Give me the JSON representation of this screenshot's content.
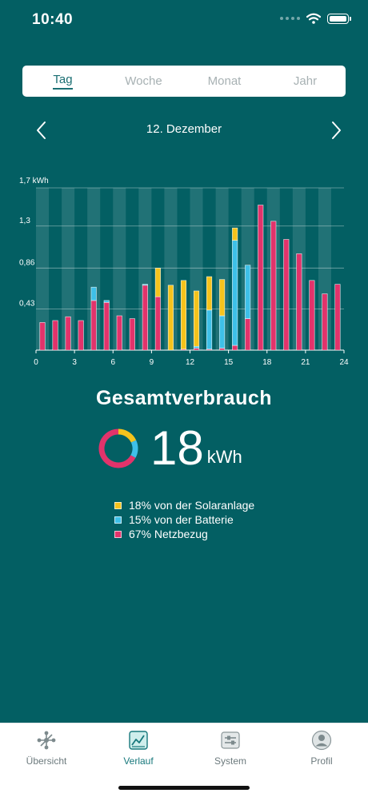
{
  "status_bar": {
    "time": "10:40"
  },
  "period_tabs": [
    {
      "label": "Tag",
      "active": true
    },
    {
      "label": "Woche",
      "active": false
    },
    {
      "label": "Monat",
      "active": false
    },
    {
      "label": "Jahr",
      "active": false
    }
  ],
  "date_nav": {
    "label": "12. Dezember",
    "prev_icon": "chevron-left-icon",
    "next_icon": "chevron-right-icon"
  },
  "colors": {
    "background": "#035f63",
    "solar": "#f5c31c",
    "battery": "#3ec0e8",
    "grid": "#e2336b"
  },
  "chart_data": {
    "type": "bar",
    "stacked": true,
    "unit_label": "1,7 kWh",
    "y_ticks": [
      "0,43",
      "0,86",
      "1,3"
    ],
    "y_tick_values": [
      0.43,
      0.86,
      1.3
    ],
    "ylim": [
      0,
      1.7
    ],
    "x_ticks": [
      "0",
      "3",
      "6",
      "9",
      "12",
      "15",
      "18",
      "21",
      "24"
    ],
    "x_tick_values": [
      0,
      3,
      6,
      9,
      12,
      15,
      18,
      21,
      24
    ],
    "xlim": [
      0,
      24
    ],
    "hours": [
      0,
      1,
      2,
      3,
      4,
      5,
      6,
      7,
      8,
      9,
      10,
      11,
      12,
      13,
      14,
      15,
      16,
      17,
      18,
      19,
      20,
      21,
      22,
      23
    ],
    "series": [
      {
        "key": "grid",
        "values": [
          0.29,
          0.31,
          0.35,
          0.31,
          0.52,
          0.5,
          0.36,
          0.33,
          0.68,
          0.56,
          0,
          0.01,
          0.02,
          0.01,
          0.02,
          0.05,
          0.33,
          1.52,
          1.35,
          1.16,
          1.01,
          0.73,
          0.59,
          0.69
        ]
      },
      {
        "key": "battery",
        "values": [
          0,
          0,
          0,
          0,
          0.14,
          0.02,
          0,
          0,
          0.01,
          0,
          0,
          0,
          0.02,
          0.41,
          0.34,
          1.1,
          0.56,
          0,
          0,
          0,
          0,
          0,
          0,
          0
        ]
      },
      {
        "key": "solar",
        "values": [
          0,
          0,
          0,
          0,
          0,
          0,
          0,
          0,
          0,
          0.3,
          0.68,
          0.72,
          0.58,
          0.35,
          0.38,
          0.13,
          0,
          0,
          0,
          0,
          0,
          0,
          0,
          0
        ]
      }
    ]
  },
  "total": {
    "title": "Gesamtverbrauch",
    "value": "18",
    "unit": "kWh",
    "shares": {
      "solar": 18,
      "battery": 15,
      "grid": 67
    }
  },
  "legend": [
    {
      "key": "solar",
      "label": "18% von der Solaranlage"
    },
    {
      "key": "battery",
      "label": "15% von der Batterie"
    },
    {
      "key": "grid",
      "label": "67% Netzbezug"
    }
  ],
  "tab_bar": [
    {
      "label": "Übersicht",
      "icon": "network-icon",
      "active": false
    },
    {
      "label": "Verlauf",
      "icon": "chart-icon",
      "active": true
    },
    {
      "label": "System",
      "icon": "sliders-icon",
      "active": false
    },
    {
      "label": "Profil",
      "icon": "user-icon",
      "active": false
    }
  ]
}
